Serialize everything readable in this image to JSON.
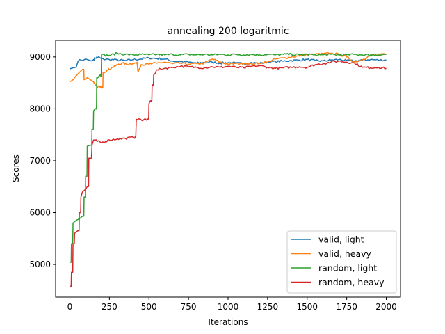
{
  "chart_data": {
    "type": "line",
    "title": "annealing 200 logaritmic",
    "xlabel": "Iterations",
    "ylabel": "Scores",
    "xlim": [
      -90,
      2090
    ],
    "ylim": [
      4370,
      9320
    ],
    "x_ticks": [
      0,
      250,
      500,
      750,
      1000,
      1250,
      1500,
      1750,
      2000
    ],
    "y_ticks": [
      5000,
      6000,
      7000,
      8000,
      9000
    ],
    "grid": false,
    "legend_position": "lower-right",
    "colors": {
      "valid_light": "#1f77b4",
      "valid_heavy": "#ff7f0e",
      "random_light": "#2ca02c",
      "random_heavy": "#d62728"
    },
    "series": [
      {
        "name": "valid, light",
        "color": "#1f77b4",
        "points": [
          [
            0,
            8770
          ],
          [
            20,
            8790
          ],
          [
            40,
            8800
          ],
          [
            50,
            8900
          ],
          [
            60,
            8950
          ],
          [
            80,
            8930
          ],
          [
            100,
            8960
          ],
          [
            120,
            8940
          ],
          [
            140,
            8920
          ],
          [
            160,
            8980
          ],
          [
            180,
            9000
          ],
          [
            200,
            8960
          ],
          [
            250,
            8950
          ],
          [
            300,
            8940
          ],
          [
            350,
            8930
          ],
          [
            400,
            8950
          ],
          [
            450,
            8960
          ],
          [
            500,
            8980
          ],
          [
            550,
            8970
          ],
          [
            600,
            8960
          ],
          [
            650,
            8920
          ],
          [
            700,
            8910
          ],
          [
            750,
            8900
          ],
          [
            800,
            8880
          ],
          [
            850,
            8890
          ],
          [
            900,
            8900
          ],
          [
            950,
            8880
          ],
          [
            1000,
            8890
          ],
          [
            1050,
            8880
          ],
          [
            1100,
            8870
          ],
          [
            1150,
            8890
          ],
          [
            1200,
            8880
          ],
          [
            1250,
            8900
          ],
          [
            1300,
            8910
          ],
          [
            1350,
            8920
          ],
          [
            1400,
            8930
          ],
          [
            1450,
            8940
          ],
          [
            1500,
            8950
          ],
          [
            1550,
            8930
          ],
          [
            1600,
            8920
          ],
          [
            1650,
            8940
          ],
          [
            1700,
            8950
          ],
          [
            1750,
            8930
          ],
          [
            1800,
            8920
          ],
          [
            1850,
            8940
          ],
          [
            1900,
            8950
          ],
          [
            1950,
            8940
          ],
          [
            2000,
            8940
          ]
        ]
      },
      {
        "name": "valid, heavy",
        "color": "#ff7f0e",
        "points": [
          [
            0,
            8520
          ],
          [
            20,
            8560
          ],
          [
            40,
            8640
          ],
          [
            60,
            8700
          ],
          [
            80,
            8760
          ],
          [
            90,
            8560
          ],
          [
            110,
            8600
          ],
          [
            130,
            8560
          ],
          [
            150,
            8520
          ],
          [
            170,
            8440
          ],
          [
            190,
            8420
          ],
          [
            200,
            8420
          ],
          [
            210,
            8700
          ],
          [
            240,
            8750
          ],
          [
            270,
            8800
          ],
          [
            300,
            8850
          ],
          [
            330,
            8880
          ],
          [
            360,
            8860
          ],
          [
            400,
            8880
          ],
          [
            430,
            8720
          ],
          [
            450,
            8850
          ],
          [
            500,
            8860
          ],
          [
            550,
            8880
          ],
          [
            600,
            8900
          ],
          [
            650,
            8870
          ],
          [
            700,
            8880
          ],
          [
            750,
            8860
          ],
          [
            800,
            8870
          ],
          [
            850,
            8880
          ],
          [
            900,
            8960
          ],
          [
            950,
            8900
          ],
          [
            1000,
            8860
          ],
          [
            1050,
            8870
          ],
          [
            1100,
            8880
          ],
          [
            1150,
            8860
          ],
          [
            1200,
            8880
          ],
          [
            1250,
            8900
          ],
          [
            1300,
            8960
          ],
          [
            1350,
            8980
          ],
          [
            1400,
            9000
          ],
          [
            1450,
            9020
          ],
          [
            1500,
            9040
          ],
          [
            1550,
            9050
          ],
          [
            1600,
            9060
          ],
          [
            1650,
            9070
          ],
          [
            1700,
            9050
          ],
          [
            1750,
            9000
          ],
          [
            1800,
            8900
          ],
          [
            1850,
            8950
          ],
          [
            1900,
            9030
          ],
          [
            1950,
            9040
          ],
          [
            2000,
            9050
          ]
        ]
      },
      {
        "name": "random, light",
        "color": "#2ca02c",
        "points": [
          [
            0,
            5040
          ],
          [
            10,
            5400
          ],
          [
            20,
            5800
          ],
          [
            40,
            5850
          ],
          [
            60,
            5880
          ],
          [
            80,
            5930
          ],
          [
            90,
            6300
          ],
          [
            100,
            6700
          ],
          [
            110,
            7280
          ],
          [
            130,
            7300
          ],
          [
            140,
            7600
          ],
          [
            150,
            7950
          ],
          [
            160,
            8000
          ],
          [
            170,
            8600
          ],
          [
            190,
            8650
          ],
          [
            200,
            9040
          ],
          [
            250,
            9030
          ],
          [
            300,
            9070
          ],
          [
            350,
            9050
          ],
          [
            400,
            9040
          ],
          [
            450,
            9050
          ],
          [
            500,
            9040
          ],
          [
            550,
            9050
          ],
          [
            600,
            9040
          ],
          [
            650,
            9050
          ],
          [
            700,
            9040
          ],
          [
            750,
            9050
          ],
          [
            800,
            9040
          ],
          [
            850,
            9050
          ],
          [
            900,
            9040
          ],
          [
            950,
            9050
          ],
          [
            1000,
            9040
          ],
          [
            1050,
            9050
          ],
          [
            1100,
            9040
          ],
          [
            1150,
            9050
          ],
          [
            1200,
            9040
          ],
          [
            1250,
            9050
          ],
          [
            1300,
            9040
          ],
          [
            1350,
            9050
          ],
          [
            1400,
            9050
          ],
          [
            1450,
            9040
          ],
          [
            1500,
            9050
          ],
          [
            1550,
            9040
          ],
          [
            1600,
            9040
          ],
          [
            1650,
            9050
          ],
          [
            1700,
            9040
          ],
          [
            1750,
            9040
          ],
          [
            1800,
            9050
          ],
          [
            1850,
            9040
          ],
          [
            1900,
            9040
          ],
          [
            1950,
            9040
          ],
          [
            2000,
            9050
          ]
        ]
      },
      {
        "name": "random, heavy",
        "color": "#d62728",
        "points": [
          [
            0,
            4580
          ],
          [
            10,
            4850
          ],
          [
            20,
            5400
          ],
          [
            30,
            5600
          ],
          [
            50,
            5650
          ],
          [
            60,
            6000
          ],
          [
            70,
            6300
          ],
          [
            80,
            6400
          ],
          [
            100,
            6450
          ],
          [
            110,
            6500
          ],
          [
            120,
            7050
          ],
          [
            140,
            7300
          ],
          [
            150,
            7400
          ],
          [
            170,
            7380
          ],
          [
            200,
            7350
          ],
          [
            250,
            7400
          ],
          [
            300,
            7420
          ],
          [
            350,
            7430
          ],
          [
            400,
            7450
          ],
          [
            420,
            7800
          ],
          [
            450,
            7790
          ],
          [
            490,
            7800
          ],
          [
            500,
            8100
          ],
          [
            510,
            8150
          ],
          [
            520,
            8450
          ],
          [
            530,
            8650
          ],
          [
            550,
            8750
          ],
          [
            600,
            8780
          ],
          [
            650,
            8800
          ],
          [
            700,
            8820
          ],
          [
            750,
            8810
          ],
          [
            800,
            8800
          ],
          [
            850,
            8790
          ],
          [
            900,
            8810
          ],
          [
            950,
            8800
          ],
          [
            1000,
            8820
          ],
          [
            1050,
            8800
          ],
          [
            1100,
            8790
          ],
          [
            1150,
            8820
          ],
          [
            1200,
            8830
          ],
          [
            1250,
            8800
          ],
          [
            1300,
            8780
          ],
          [
            1350,
            8790
          ],
          [
            1400,
            8800
          ],
          [
            1450,
            8810
          ],
          [
            1500,
            8800
          ],
          [
            1550,
            8850
          ],
          [
            1600,
            8870
          ],
          [
            1650,
            8900
          ],
          [
            1700,
            8920
          ],
          [
            1750,
            8900
          ],
          [
            1800,
            8880
          ],
          [
            1850,
            8800
          ],
          [
            1900,
            8790
          ],
          [
            1950,
            8800
          ],
          [
            2000,
            8780
          ]
        ]
      }
    ]
  }
}
